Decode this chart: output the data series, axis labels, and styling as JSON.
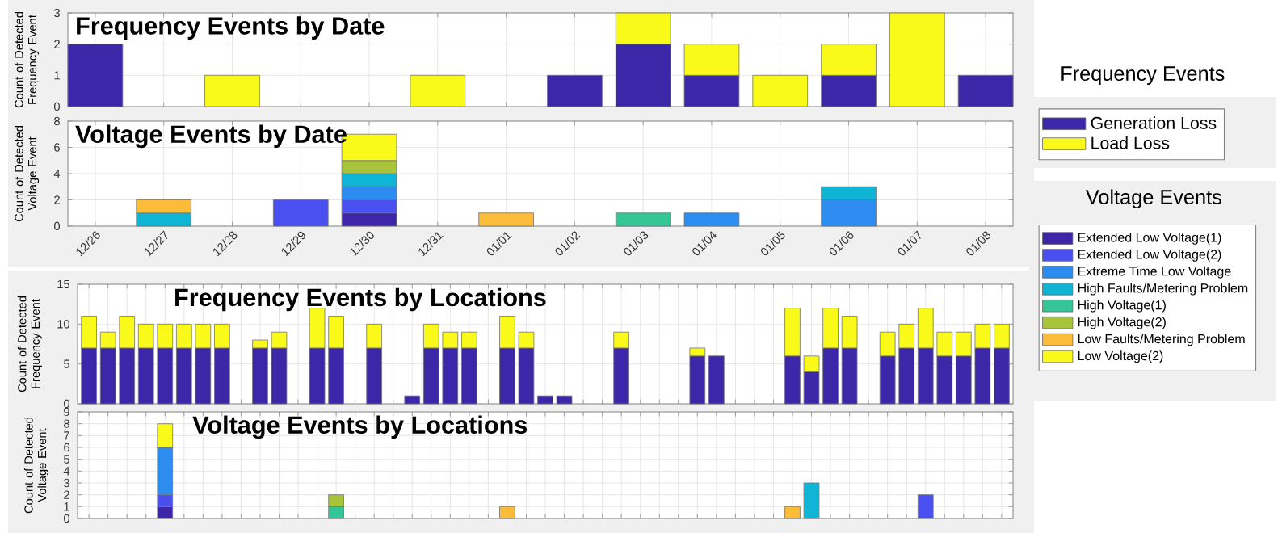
{
  "chart_data": [
    {
      "type": "bar",
      "title": "Frequency Events by Date",
      "ylabel": "Count of Detected Frequency Event",
      "stacked": true,
      "grid": true,
      "legend": "right",
      "legend_title": "Frequency Events",
      "ylim": [
        0,
        3
      ],
      "yticks": [
        0,
        1,
        2,
        3
      ],
      "categories": [
        null,
        null,
        null,
        null,
        null,
        null,
        null,
        null,
        null,
        null,
        null,
        null,
        null,
        null
      ],
      "series": [
        {
          "name": "Generation Loss",
          "color": "#3b27a8",
          "values": [
            2,
            0,
            0,
            0,
            0,
            0,
            0,
            1,
            2,
            1,
            0,
            1,
            0,
            1
          ]
        },
        {
          "name": "Load Loss",
          "color": "#f9f91a",
          "values": [
            0,
            0,
            1,
            0,
            0,
            1,
            0,
            0,
            1,
            1,
            1,
            1,
            3,
            0
          ]
        }
      ]
    },
    {
      "type": "bar",
      "title": "Voltage Events by Date",
      "ylabel": "Count of Detected Voltage Event",
      "stacked": true,
      "grid": true,
      "legend": "right",
      "legend_title": "Voltage Events",
      "ylim": [
        0,
        8
      ],
      "yticks": [
        0,
        2,
        4,
        6,
        8
      ],
      "categories": [
        "12/26",
        "12/27",
        "12/28",
        "12/29",
        "12/30",
        "12/31",
        "01/01",
        "01/02",
        "01/03",
        "01/04",
        "01/05",
        "01/06",
        "01/07",
        "01/08"
      ],
      "series": [
        {
          "name": "Extended Low Voltage(1)",
          "color": "#3d26a8",
          "values": [
            0,
            0,
            0,
            0,
            1,
            0,
            0,
            0,
            0,
            0,
            0,
            0,
            0,
            0
          ]
        },
        {
          "name": "Extended Low Voltage(2)",
          "color": "#4a4ff0",
          "values": [
            0,
            0,
            0,
            2,
            1,
            0,
            0,
            0,
            0,
            0,
            0,
            0,
            0,
            0
          ]
        },
        {
          "name": "Extreme Time Low Voltage",
          "color": "#2c8cf0",
          "values": [
            0,
            0,
            0,
            0,
            1,
            0,
            0,
            0,
            0,
            1,
            0,
            2,
            0,
            0
          ]
        },
        {
          "name": "High Faults/Metering Problem",
          "color": "#10b4d4",
          "values": [
            0,
            1,
            0,
            0,
            1,
            0,
            0,
            0,
            0,
            0,
            0,
            1,
            0,
            0
          ]
        },
        {
          "name": "High Voltage(1)",
          "color": "#36c596",
          "values": [
            0,
            0,
            0,
            0,
            0,
            0,
            0,
            0,
            1,
            0,
            0,
            0,
            0,
            0
          ]
        },
        {
          "name": "High Voltage(2)",
          "color": "#a7c43a",
          "values": [
            0,
            0,
            0,
            0,
            1,
            0,
            0,
            0,
            0,
            0,
            0,
            0,
            0,
            0
          ]
        },
        {
          "name": "Low Faults/Metering Problem",
          "color": "#fbbc3a",
          "values": [
            0,
            1,
            0,
            0,
            0,
            0,
            1,
            0,
            0,
            0,
            0,
            0,
            0,
            0
          ]
        },
        {
          "name": "Low Voltage(2)",
          "color": "#f9f91a",
          "values": [
            0,
            0,
            0,
            0,
            2,
            0,
            0,
            0,
            0,
            0,
            0,
            0,
            0,
            0
          ]
        }
      ]
    },
    {
      "type": "bar",
      "title": "Frequency Events by Locations",
      "ylabel": "Count of Detected Frequency Event",
      "stacked": true,
      "grid": true,
      "ylim": [
        0,
        15
      ],
      "yticks": [
        0,
        5,
        10,
        15
      ],
      "categories": [
        null,
        null,
        null,
        null,
        null,
        null,
        null,
        null,
        null,
        null,
        null,
        null,
        null,
        null,
        null,
        null,
        null,
        null,
        null,
        null,
        null,
        null,
        null,
        null,
        null,
        null,
        null,
        null,
        null,
        null,
        null,
        null,
        null,
        null,
        null,
        null,
        null,
        null,
        null,
        null,
        null,
        null,
        null,
        null,
        null,
        null,
        null,
        null,
        null
      ],
      "series": [
        {
          "color": "#3b27a8",
          "values": [
            7,
            7,
            7,
            7,
            7,
            7,
            7,
            7,
            0,
            7,
            7,
            0,
            7,
            7,
            0,
            7,
            0,
            1,
            7,
            7,
            7,
            0,
            7,
            7,
            1,
            1,
            0,
            0,
            7,
            0,
            0,
            0,
            6,
            6,
            0,
            0,
            0,
            6,
            4,
            7,
            7,
            0,
            6,
            7,
            7,
            6,
            6,
            7,
            7
          ]
        },
        {
          "color": "#f9f91a",
          "values": [
            4,
            2,
            4,
            3,
            3,
            3,
            3,
            3,
            0,
            1,
            2,
            0,
            5,
            4,
            0,
            3,
            0,
            0,
            3,
            2,
            2,
            0,
            4,
            2,
            0,
            0,
            0,
            0,
            2,
            0,
            0,
            0,
            1,
            0,
            0,
            0,
            0,
            6,
            2,
            5,
            4,
            0,
            3,
            3,
            5,
            3,
            3,
            3,
            3
          ]
        }
      ]
    },
    {
      "type": "bar",
      "title": "Voltage Events by Locations",
      "ylabel": "Count of Detected Voltage Event",
      "stacked": true,
      "grid": true,
      "ylim": [
        0,
        9
      ],
      "yticks": [
        0,
        1,
        2,
        3,
        4,
        5,
        6,
        7,
        8,
        9
      ],
      "categories": [
        null,
        null,
        null,
        null,
        null,
        null,
        null,
        null,
        null,
        null,
        null,
        null,
        null,
        null,
        null,
        null,
        null,
        null,
        null,
        null,
        null,
        null,
        null,
        null,
        null,
        null,
        null,
        null,
        null,
        null,
        null,
        null,
        null,
        null,
        null,
        null,
        null,
        null,
        null,
        null,
        null,
        null,
        null,
        null,
        null,
        null,
        null,
        null,
        null
      ],
      "series": [
        {
          "color": "#3d26a8",
          "values": [
            0,
            0,
            0,
            0,
            1,
            0,
            0,
            0,
            0,
            0,
            0,
            0,
            0,
            0,
            0,
            0,
            0,
            0,
            0,
            0,
            0,
            0,
            0,
            0,
            0,
            0,
            0,
            0,
            0,
            0,
            0,
            0,
            0,
            0,
            0,
            0,
            0,
            0,
            0,
            0,
            0,
            0,
            0,
            0,
            0,
            0,
            0,
            0,
            0
          ]
        },
        {
          "color": "#4a4ff0",
          "values": [
            0,
            0,
            0,
            0,
            1,
            0,
            0,
            0,
            0,
            0,
            0,
            0,
            0,
            0,
            0,
            0,
            0,
            0,
            0,
            0,
            0,
            0,
            0,
            0,
            0,
            0,
            0,
            0,
            0,
            0,
            0,
            0,
            0,
            0,
            0,
            0,
            0,
            0,
            0,
            0,
            0,
            0,
            0,
            0,
            2,
            0,
            0,
            0,
            0
          ]
        },
        {
          "color": "#2c8cf0",
          "values": [
            0,
            0,
            0,
            0,
            4,
            0,
            0,
            0,
            0,
            0,
            0,
            0,
            0,
            0,
            0,
            0,
            0,
            0,
            0,
            0,
            0,
            0,
            0,
            0,
            0,
            0,
            0,
            0,
            0,
            0,
            0,
            0,
            0,
            0,
            0,
            0,
            0,
            0,
            0,
            0,
            0,
            0,
            0,
            0,
            0,
            0,
            0,
            0,
            0
          ]
        },
        {
          "color": "#10b4d4",
          "values": [
            0,
            0,
            0,
            0,
            0,
            0,
            0,
            0,
            0,
            0,
            0,
            0,
            0,
            0,
            0,
            0,
            0,
            0,
            0,
            0,
            0,
            0,
            0,
            0,
            0,
            0,
            0,
            0,
            0,
            0,
            0,
            0,
            0,
            0,
            0,
            0,
            0,
            0,
            3,
            0,
            0,
            0,
            0,
            0,
            0,
            0,
            0,
            0,
            0
          ]
        },
        {
          "color": "#36c596",
          "values": [
            0,
            0,
            0,
            0,
            0,
            0,
            0,
            0,
            0,
            0,
            0,
            0,
            0,
            1,
            0,
            0,
            0,
            0,
            0,
            0,
            0,
            0,
            0,
            0,
            0,
            0,
            0,
            0,
            0,
            0,
            0,
            0,
            0,
            0,
            0,
            0,
            0,
            0,
            0,
            0,
            0,
            0,
            0,
            0,
            0,
            0,
            0,
            0,
            0
          ]
        },
        {
          "color": "#a7c43a",
          "values": [
            0,
            0,
            0,
            0,
            0,
            0,
            0,
            0,
            0,
            0,
            0,
            0,
            0,
            1,
            0,
            0,
            0,
            0,
            0,
            0,
            0,
            0,
            0,
            0,
            0,
            0,
            0,
            0,
            0,
            0,
            0,
            0,
            0,
            0,
            0,
            0,
            0,
            0,
            0,
            0,
            0,
            0,
            0,
            0,
            0,
            0,
            0,
            0,
            0
          ]
        },
        {
          "color": "#fbbc3a",
          "values": [
            0,
            0,
            0,
            0,
            0,
            0,
            0,
            0,
            0,
            0,
            0,
            0,
            0,
            0,
            0,
            0,
            0,
            0,
            0,
            0,
            0,
            0,
            1,
            0,
            0,
            0,
            0,
            0,
            0,
            0,
            0,
            0,
            0,
            0,
            0,
            0,
            0,
            1,
            0,
            0,
            0,
            0,
            0,
            0,
            0,
            0,
            0,
            0,
            0
          ]
        },
        {
          "color": "#f9f91a",
          "values": [
            0,
            0,
            0,
            0,
            2,
            0,
            0,
            0,
            0,
            0,
            0,
            0,
            0,
            0,
            0,
            0,
            0,
            0,
            0,
            0,
            0,
            0,
            0,
            0,
            0,
            0,
            0,
            0,
            0,
            0,
            0,
            0,
            0,
            0,
            0,
            0,
            0,
            0,
            0,
            0,
            0,
            0,
            0,
            0,
            0,
            0,
            0,
            0,
            0
          ]
        }
      ]
    }
  ]
}
